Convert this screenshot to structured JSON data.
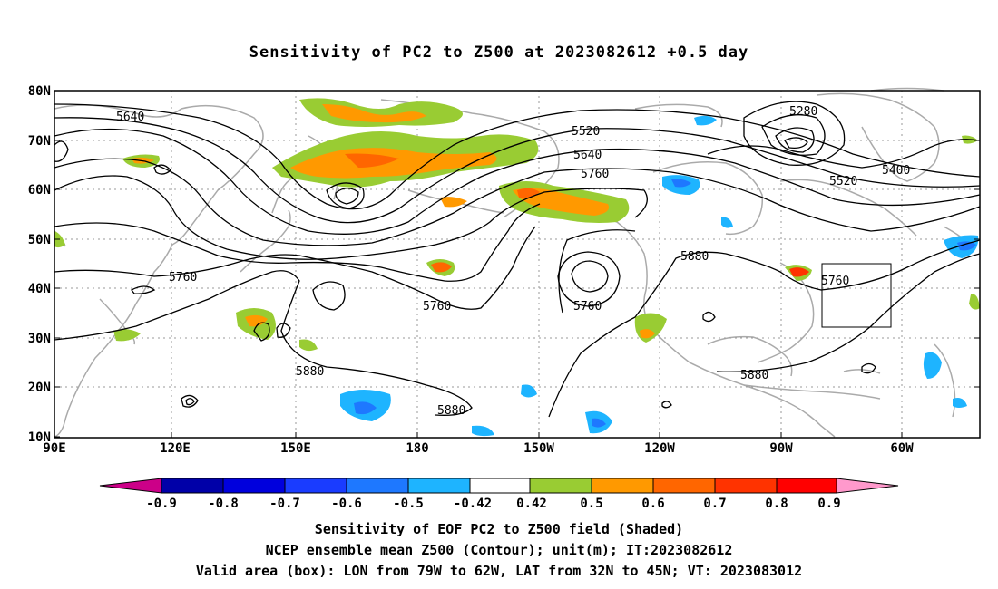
{
  "title": "Sensitivity of PC2 to Z500 at 2023082612 +0.5 day",
  "map": {
    "lat_ticks": [
      "80N",
      "70N",
      "60N",
      "50N",
      "40N",
      "30N",
      "20N",
      "10N"
    ],
    "lon_ticks": [
      "90E",
      "120E",
      "150E",
      "180",
      "150W",
      "120W",
      "90W",
      "60W"
    ],
    "lon_range": [
      90,
      310
    ],
    "lat_range": [
      10,
      80
    ],
    "contour_labels": [
      "5640",
      "5520",
      "5640",
      "5760",
      "5280",
      "5400",
      "5520",
      "5760",
      "5760",
      "5760",
      "5760",
      "5880",
      "5880",
      "5880",
      "5880"
    ],
    "valid_box": {
      "lon": [
        -79,
        -62
      ],
      "lat": [
        32,
        45
      ]
    }
  },
  "colorbar": {
    "labels": [
      "-0.9",
      "-0.8",
      "-0.7",
      "-0.6",
      "-0.5",
      "-0.42",
      "0.42",
      "0.5",
      "0.6",
      "0.7",
      "0.8",
      "0.9"
    ],
    "colors": [
      "#cc0088",
      "#0000a8",
      "#0000dd",
      "#1a3cff",
      "#1e78ff",
      "#1eb4ff",
      "#00d0ff",
      "#ffffff",
      "#99cc33",
      "#ff9900",
      "#ff6600",
      "#ff3300",
      "#ff0000",
      "#ff99cc"
    ]
  },
  "footer": {
    "line1": "Sensitivity of EOF PC2 to Z500 field (Shaded)",
    "line2": "NCEP ensemble mean Z500 (Contour); unit(m); IT:2023082612",
    "line3": "Valid area (box): LON from 79W to 62W, LAT from 32N to 45N; VT: 2023083012"
  }
}
